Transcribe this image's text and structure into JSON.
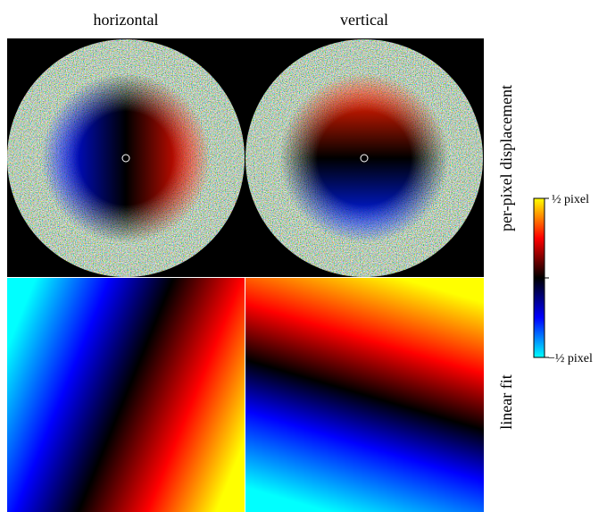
{
  "columns": [
    "horizontal",
    "vertical"
  ],
  "rows": [
    "per-pixel displacement",
    "linear fit"
  ],
  "colorbar": {
    "top_label": "½ pixel",
    "bottom_label": "−½ pixel"
  }
}
